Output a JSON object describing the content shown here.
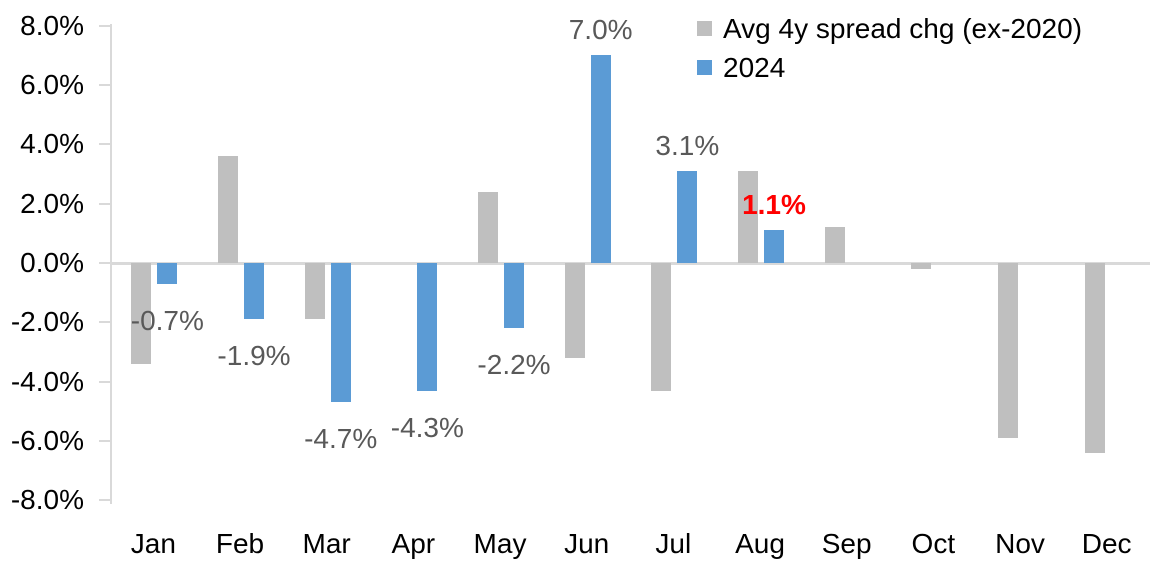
{
  "chart_data": {
    "type": "bar",
    "title": "",
    "categories": [
      "Jan",
      "Feb",
      "Mar",
      "Apr",
      "May",
      "Jun",
      "Jul",
      "Aug",
      "Sep",
      "Oct",
      "Nov",
      "Dec"
    ],
    "series": [
      {
        "name": "Avg 4y spread chg (ex-2020)",
        "color": "#BFBFBF",
        "values": [
          -3.4,
          3.6,
          -1.9,
          0.0,
          2.4,
          -3.2,
          -4.3,
          3.1,
          1.2,
          -0.2,
          -5.9,
          -6.4
        ]
      },
      {
        "name": "2024",
        "color": "#5B9BD5",
        "values": [
          -0.7,
          -1.9,
          -4.7,
          -4.3,
          -2.2,
          7.0,
          3.1,
          1.1,
          null,
          null,
          null,
          null
        ],
        "labels": [
          "-0.7%",
          "-1.9%",
          "-4.7%",
          "-4.3%",
          "-2.2%",
          "7.0%",
          "3.1%",
          "1.1%",
          null,
          null,
          null,
          null
        ],
        "label_highlight_index": 7
      }
    ],
    "y_axis": {
      "min": -8,
      "max": 8,
      "step": 2,
      "tick_labels": [
        "8.0%",
        "6.0%",
        "4.0%",
        "2.0%",
        "0.0%",
        "-2.0%",
        "-4.0%",
        "-6.0%",
        "-8.0%"
      ]
    },
    "legend_position": "top-right",
    "grid": false,
    "colors": {
      "axis_line": "#D9D9D9",
      "axis_text": "#000000",
      "data_label": "#595959",
      "highlight_label": "#FF0000",
      "gray_series": "#BFBFBF",
      "blue_series": "#5B9BD5"
    }
  }
}
